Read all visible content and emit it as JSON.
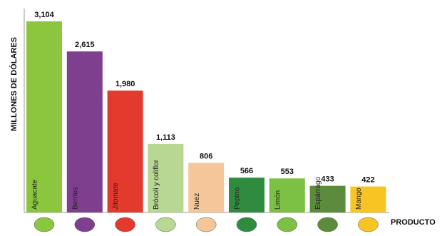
{
  "chart_data": {
    "type": "bar",
    "y_label": "MILLONES DE DÓLARES",
    "x_label": "PRODUCTO",
    "categories": [
      "Aguacate",
      "Berries",
      "Jitomate",
      "Brócoli y coliflor",
      "Nuez",
      "Pepino",
      "Limón",
      "Espárrago",
      "Mango"
    ],
    "values": [
      3104,
      2615,
      1980,
      1113,
      806,
      566,
      553,
      433,
      422
    ],
    "value_labels": [
      "3,104",
      "2,615",
      "1,980",
      "1,113",
      "806",
      "566",
      "553",
      "433",
      "422"
    ],
    "colors": [
      "#8cc63e",
      "#7e3f8f",
      "#e23b2e",
      "#b7d793",
      "#f4c69a",
      "#2f8c3f",
      "#7cc143",
      "#5b8b3b",
      "#f8c424"
    ],
    "ylim": [
      0,
      3300
    ]
  }
}
